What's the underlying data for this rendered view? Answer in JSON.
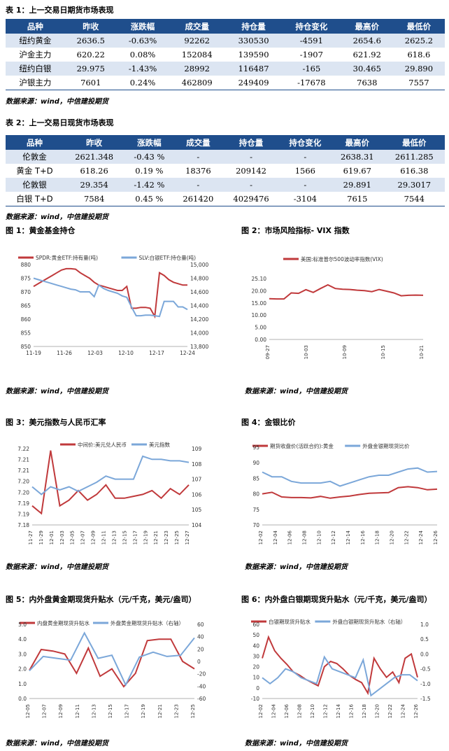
{
  "table1": {
    "title": "表 1：上一交易日期货市场表现",
    "headers": [
      "品种",
      "昨收",
      "涨跌幅",
      "成交量",
      "持仓量",
      "持仓变化",
      "最高价",
      "最低价"
    ],
    "rows": [
      [
        "纽约黄金",
        "2636.5",
        "-0.63%",
        "92262",
        "330530",
        "-4591",
        "2654.6",
        "2625.2"
      ],
      [
        "沪金主力",
        "620.22",
        "0.08%",
        "152084",
        "139590",
        "-1907",
        "621.92",
        "618.6"
      ],
      [
        "纽约白银",
        "29.975",
        "-1.43%",
        "28992",
        "116487",
        "-165",
        "30.465",
        "29.890"
      ],
      [
        "沪银主力",
        "7601",
        "0.24%",
        "462809",
        "249409",
        "-17678",
        "7638",
        "7557"
      ]
    ],
    "source": "数据来源：wind，中信建投期货"
  },
  "table2": {
    "title": "表 2：上一交易日现货市场表现",
    "headers": [
      "品种",
      "昨收",
      "涨跌幅",
      "成交量",
      "持仓量",
      "持仓变化",
      "最高价",
      "最低价"
    ],
    "rows": [
      [
        "伦敦金",
        "2621.348",
        "-0.43 %",
        "-",
        "-",
        "-",
        "2638.31",
        "2611.285"
      ],
      [
        "黄金 T+D",
        "618.26",
        "0.19 %",
        "18376",
        "209142",
        "1566",
        "619.67",
        "616.38"
      ],
      [
        "伦敦银",
        "29.354",
        "-1.42 %",
        "-",
        "-",
        "-",
        "29.891",
        "29.3017"
      ],
      [
        "白银 T+D",
        "7584",
        "0.45 %",
        "261420",
        "4029476",
        "-3104",
        "7615",
        "7544"
      ]
    ],
    "source": "数据来源：wind，中信建投期货"
  },
  "figures": {
    "fig1_title": "图 1：黄金基金持仓",
    "fig2_title": "图 2：市场风险指标- VIX 指数",
    "fig3_title": "图 3：美元指数与人民币汇率",
    "fig4_title": "图 4：金银比价",
    "fig5_title": "图 5：内外盘黄金期现货升贴水（元/千克，美元/盎司）",
    "fig6_title": "图 6：内外盘白银期现货升贴水（元/千克，美元/盎司）",
    "source": "数据来源：wind，中信建投期货"
  },
  "colors": {
    "red": "#c0393b",
    "blue": "#7ba7d9",
    "header": "#1f4e8c",
    "alt": "#dce5f2"
  },
  "chart_data": [
    {
      "id": "fig1",
      "type": "line",
      "x_ticks": [
        "11-19",
        "11-26",
        "12-03",
        "12-10",
        "12-17",
        "12-24"
      ],
      "series": [
        {
          "name": "SPDR:黄金ETF:持有量(吨)",
          "axis": "left",
          "color": "#c0393b",
          "values": [
            872,
            873,
            874,
            875,
            876,
            877,
            878,
            878.5,
            878.5,
            878.3,
            877,
            876,
            875,
            873.5,
            872.5,
            872,
            871.5,
            871,
            870.5,
            870.5,
            872,
            864,
            864,
            864.3,
            864.3,
            864,
            861,
            877,
            876,
            874.5,
            873.5,
            873,
            872.5,
            872.5
          ]
        },
        {
          "name": "SLV:白银ETF:持仓量(吨)",
          "axis": "right",
          "color": "#7ba7d9",
          "values": [
            14800,
            14780,
            14760,
            14740,
            14720,
            14700,
            14680,
            14660,
            14640,
            14630,
            14600,
            14600,
            14600,
            14530,
            14700,
            14650,
            14620,
            14600,
            14580,
            14540,
            14520,
            14380,
            14250,
            14250,
            14260,
            14260,
            14250,
            14240,
            14460,
            14460,
            14460,
            14380,
            14380,
            14340
          ]
        }
      ],
      "left_axis": {
        "min": 850,
        "max": 880,
        "ticks": [
          850,
          855,
          860,
          865,
          870,
          875,
          880
        ]
      },
      "right_axis": {
        "min": 13800,
        "max": 15000,
        "ticks": [
          "13,800",
          "14,000",
          "14,200",
          "14,400",
          "14,600",
          "14,800",
          "15,000"
        ]
      }
    },
    {
      "id": "fig2",
      "type": "line",
      "x_ticks": [
        "09-27",
        "10-03",
        "10-09",
        "10-15",
        "10-21"
      ],
      "x_ticks_all": [
        "09-27",
        "09-29",
        "10-01",
        "10-03",
        "10-05",
        "10-07",
        "10-09",
        "10-11",
        "10-13",
        "10-15",
        "10-17",
        "10-19",
        "10-21"
      ],
      "series": [
        {
          "name": "美国:标准普尔500波动率指数(VIX)",
          "axis": "left",
          "color": "#c0393b",
          "values": [
            16.8,
            16.7,
            16.7,
            19.2,
            19.0,
            20.5,
            19.4,
            21.0,
            22.5,
            21.0,
            20.7,
            20.6,
            20.3,
            20.1,
            19.7,
            20.6,
            19.9,
            19.2,
            18.0,
            18.2,
            18.3,
            18.2
          ]
        }
      ],
      "left_axis": {
        "min": 0,
        "max": 25.1,
        "ticks": [
          "0.00",
          "5.00",
          "10.00",
          "15.00",
          "20.00",
          "25.10"
        ]
      }
    },
    {
      "id": "fig3",
      "type": "line",
      "x_ticks": [
        "11-27",
        "11-29",
        "12-01",
        "12-03",
        "12-05",
        "12-07",
        "12-09",
        "12-11",
        "12-13",
        "12-15",
        "12-17",
        "12-19",
        "12-21",
        "12-23",
        "12-25",
        "12-27"
      ],
      "series": [
        {
          "name": "中间价:美元兑人民币",
          "axis": "left",
          "color": "#c0393b",
          "values": [
            7.19,
            7.186,
            7.219,
            7.19,
            7.193,
            7.198,
            7.193,
            7.196,
            7.201,
            7.194,
            7.194,
            7.195,
            7.196,
            7.198,
            7.194,
            7.199,
            7.196,
            7.201
          ]
        },
        {
          "name": "美元指数",
          "axis": "right",
          "color": "#7ba7d9",
          "values": [
            106.5,
            106.0,
            106.5,
            106.3,
            106.5,
            106.2,
            106.5,
            106.8,
            107.2,
            107.0,
            107.0,
            107.0,
            108.5,
            108.3,
            108.3,
            108.2,
            108.2,
            108.1
          ]
        }
      ],
      "left_axis": {
        "min": 7.18,
        "max": 7.22,
        "ticks": [
          "7.18",
          "7.19",
          "7.19",
          "7.20",
          "7.20",
          "7.21",
          "7.21",
          "7.22"
        ]
      },
      "right_axis": {
        "min": 104,
        "max": 109,
        "ticks": [
          104,
          105,
          106,
          107,
          108,
          109
        ]
      }
    },
    {
      "id": "fig4",
      "type": "line",
      "x_ticks": [
        "12-02",
        "12-04",
        "12-06",
        "12-08",
        "12-10",
        "12-12",
        "12-14",
        "12-16",
        "12-18",
        "12-20",
        "12-22",
        "12-24",
        "12-26"
      ],
      "series": [
        {
          "name": "期货收盘价(活跃合约):黄金",
          "axis": "left",
          "color": "#c0393b",
          "values": [
            80,
            80.5,
            79,
            78.8,
            78.8,
            78.7,
            79.2,
            78.6,
            79,
            79.3,
            79.8,
            80.2,
            80.3,
            80.4,
            82,
            82.3,
            82,
            81.3,
            81.5
          ]
        },
        {
          "name": "外盘金银期现货比价",
          "axis": "left",
          "color": "#7ba7d9",
          "values": [
            87,
            85.5,
            85.5,
            84,
            83.5,
            83.5,
            83.5,
            84,
            82.5,
            83.5,
            84.5,
            85.5,
            86,
            86,
            87,
            88,
            88.3,
            87,
            87.2
          ]
        }
      ],
      "left_axis": {
        "min": 70,
        "max": 95,
        "ticks": [
          70,
          75,
          80,
          85,
          90,
          95
        ]
      }
    },
    {
      "id": "fig5",
      "type": "line",
      "x_ticks": [
        "12-05",
        "12-07",
        "12-09",
        "12-11",
        "12-13",
        "12-15",
        "12-17",
        "12-19",
        "12-21",
        "12-23",
        "12-25"
      ],
      "series": [
        {
          "name": "内盘黄金期现货升贴水",
          "axis": "left",
          "color": "#c0393b",
          "values": [
            1.9,
            3.3,
            3.2,
            3.0,
            1.7,
            3.4,
            1.5,
            2.0,
            0.8,
            1.7,
            3.9,
            4.0,
            4.0,
            2.5,
            2.0
          ]
        },
        {
          "name": "外盘黄金期现货升贴水（右轴）",
          "axis": "right",
          "color": "#7ba7d9",
          "values": [
            -15,
            8,
            5,
            2,
            46,
            5,
            10,
            -38,
            7,
            15,
            8,
            10,
            38
          ]
        }
      ],
      "left_axis": {
        "min": 0.0,
        "max": 5.0,
        "ticks": [
          "0.0",
          "1.0",
          "2.0",
          "3.0",
          "4.0",
          "5.0"
        ]
      },
      "right_axis": {
        "min": -60,
        "max": 60,
        "ticks": [
          -60,
          -40,
          -20,
          0,
          20,
          40,
          60
        ]
      }
    },
    {
      "id": "fig6",
      "type": "line",
      "x_ticks": [
        "12-02",
        "12-04",
        "12-06",
        "12-08",
        "12-10",
        "12-12",
        "12-14",
        "12-16",
        "12-18",
        "12-20",
        "12-22",
        "12-24",
        "12-26"
      ],
      "series": [
        {
          "name": "白银期现货升贴水",
          "axis": "left",
          "color": "#c0393b",
          "values": [
            28,
            48,
            35,
            28,
            22,
            15,
            12,
            8,
            5,
            2,
            20,
            25,
            23,
            18,
            12,
            8,
            5,
            -5,
            28,
            18,
            10,
            15,
            5,
            28,
            32,
            10
          ]
        },
        {
          "name": "外盘白银期现货升贴水（右轴）",
          "axis": "right",
          "color": "#7ba7d9",
          "values": [
            -0.8,
            -1.0,
            -0.8,
            -0.5,
            -0.6,
            -0.8,
            -0.9,
            -1.0,
            -0.1,
            -0.5,
            -0.6,
            -0.7,
            -0.8,
            -0.2,
            -1.4,
            -1.2,
            -1.0,
            -0.8,
            -0.7,
            -0.7,
            -0.9
          ]
        }
      ],
      "left_axis": {
        "min": -10,
        "max": 60,
        "ticks": [
          -10,
          0,
          10,
          20,
          30,
          40,
          50,
          60
        ]
      },
      "right_axis": {
        "min": -1.5,
        "max": 1.0,
        "ticks": [
          "-1.5",
          "-1.0",
          "-0.5",
          "0.0",
          "0.5",
          "1.0"
        ]
      }
    }
  ]
}
